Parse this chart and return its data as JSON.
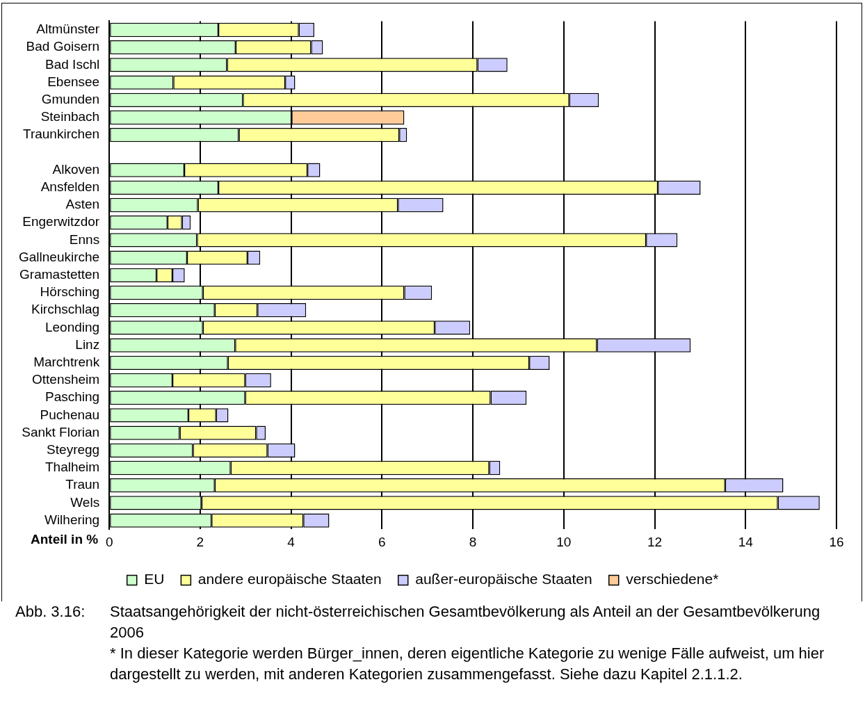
{
  "chart_data": {
    "type": "bar",
    "orientation": "horizontal",
    "stacked": true,
    "categories": [
      "Altmünster",
      "Bad Goisern",
      "Bad Ischl",
      "Ebensee",
      "Gmunden",
      "Steinbach",
      "Traunkirchen",
      null,
      "Alkoven",
      "Ansfelden",
      "Asten",
      "Engerwitzdor",
      "Enns",
      "Gallneukirche",
      "Gramastetten",
      "Hörsching",
      "Kirchschlag",
      "Leonding",
      "Linz",
      "Marchtrenk",
      "Ottensheim",
      "Pasching",
      "Puchenau",
      "Sankt Florian",
      "Steyregg",
      "Thalheim",
      "Traun",
      "Wels",
      "Wilhering"
    ],
    "series": [
      {
        "name": "EU",
        "color": "#ccffcc",
        "values": [
          2.4,
          2.78,
          2.59,
          1.41,
          2.94,
          4.01,
          2.85,
          null,
          1.65,
          2.4,
          1.95,
          1.28,
          1.93,
          1.71,
          1.04,
          2.06,
          2.32,
          2.06,
          2.77,
          2.61,
          1.39,
          2.99,
          1.74,
          1.55,
          1.84,
          2.67,
          2.32,
          2.03,
          2.25
        ]
      },
      {
        "name": "andere europäische Staaten",
        "color": "#ffff99",
        "values": [
          1.77,
          1.66,
          5.51,
          2.46,
          7.18,
          null,
          3.53,
          null,
          2.71,
          9.67,
          4.4,
          0.32,
          9.88,
          1.33,
          0.35,
          4.43,
          0.94,
          5.1,
          7.96,
          6.63,
          1.6,
          5.4,
          0.61,
          1.68,
          1.64,
          5.69,
          11.23,
          12.68,
          2.02
        ]
      },
      {
        "name": "außer-europäische Staaten",
        "color": "#ccccff",
        "values": [
          0.34,
          0.26,
          0.66,
          0.22,
          0.65,
          null,
          0.17,
          null,
          0.28,
          0.94,
          1.0,
          0.19,
          0.69,
          0.28,
          0.27,
          0.61,
          1.07,
          0.78,
          2.06,
          0.45,
          0.57,
          0.79,
          0.27,
          0.21,
          0.61,
          0.24,
          1.28,
          0.92,
          0.57
        ]
      },
      {
        "name": "verschiedene*",
        "color": "#ffcc99",
        "values": [
          null,
          null,
          null,
          null,
          null,
          2.48,
          null,
          null,
          null,
          null,
          null,
          null,
          null,
          null,
          null,
          null,
          null,
          null,
          null,
          null,
          null,
          null,
          null,
          null,
          null,
          null,
          null,
          null,
          null
        ]
      }
    ],
    "xlabel": "Anteil in %",
    "xlim": [
      0,
      16
    ],
    "xticks": [
      0,
      2,
      4,
      6,
      8,
      10,
      12,
      14,
      16
    ],
    "grid": "x",
    "legend": "bottom",
    "annotations": [
      "Abb. 3.16: Staatsangehörigkeit der nicht-österreichischen Gesamtbevölkerung als Anteil an der Gesamtbevölkerung 2006",
      "* In dieser Kategorie werden Bürger_innen, deren eigentliche Kategorie zu wenige Fälle aufweist, um hier dargestellt zu werden, mit anderen Kategorien zusammengefasst. Siehe dazu Kapitel 2.1.1.2."
    ]
  }
}
